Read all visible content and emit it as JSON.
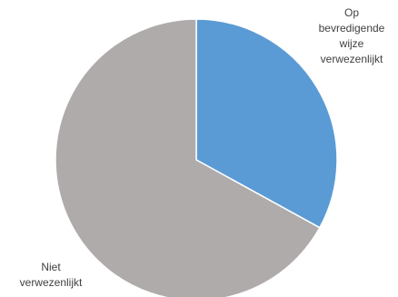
{
  "chart_data": {
    "type": "pie",
    "slices": [
      {
        "label_lines": [
          "Op",
          "bevredigende",
          "wijze",
          "verwezenlijkt"
        ],
        "value": 33,
        "color": "#5b9bd5"
      },
      {
        "label_lines": [
          "Niet",
          "verwezenlijkt"
        ],
        "value": 67,
        "color": "#afabab"
      }
    ]
  }
}
